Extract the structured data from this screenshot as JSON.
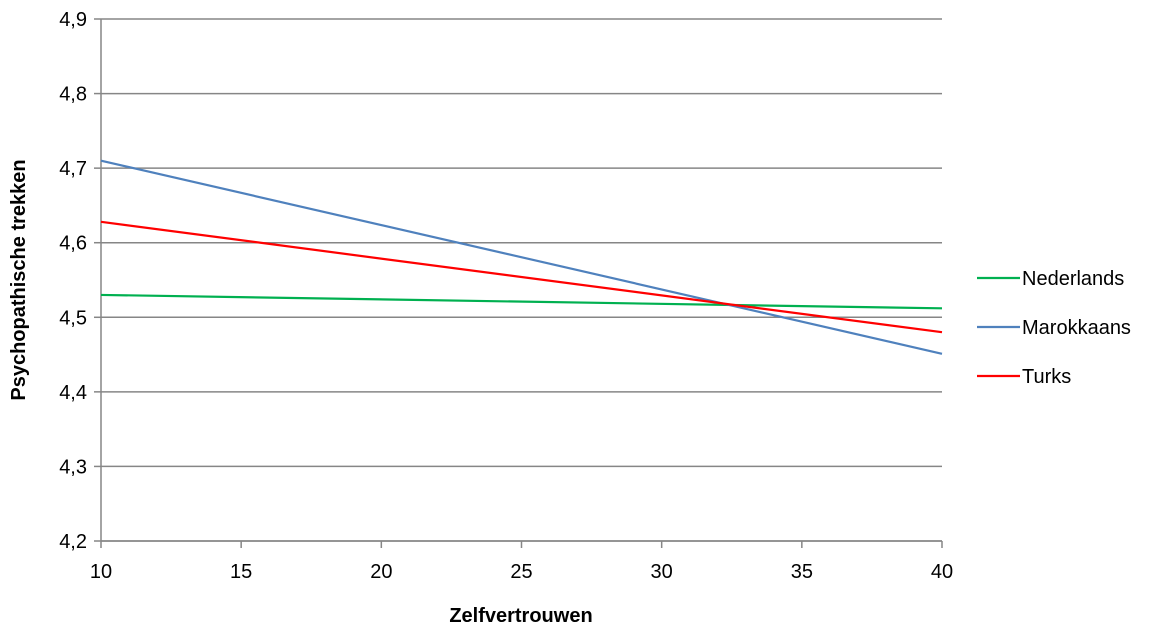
{
  "chart_data": {
    "type": "line",
    "title": "",
    "xlabel": "Zelfvertrouwen",
    "ylabel": "Psychopathische trekken",
    "x": [
      10,
      40
    ],
    "xlim": [
      10,
      40
    ],
    "ylim": [
      4.2,
      4.9
    ],
    "x_ticks": [
      "10",
      "15",
      "20",
      "25",
      "30",
      "35",
      "40"
    ],
    "y_ticks": [
      "4,2",
      "4,3",
      "4,4",
      "4,5",
      "4,6",
      "4,7",
      "4,8",
      "4,9"
    ],
    "grid": "horizontal",
    "legend_position": "right",
    "series": [
      {
        "name": "Nederlands",
        "color": "#00b050",
        "values": [
          4.53,
          4.512
        ]
      },
      {
        "name": "Marokkaans",
        "color": "#4f81bd",
        "values": [
          4.71,
          4.451
        ]
      },
      {
        "name": "Turks",
        "color": "#ff0000",
        "values": [
          4.628,
          4.48
        ]
      }
    ]
  }
}
